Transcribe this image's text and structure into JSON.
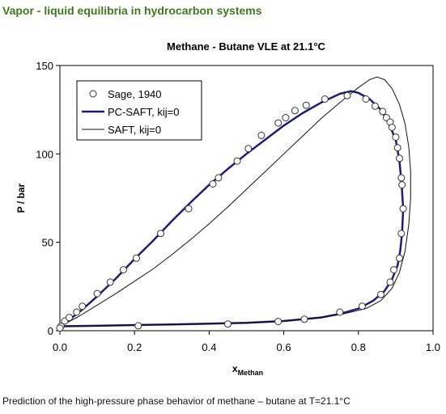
{
  "header": {
    "title": "Vapor - liquid equilibria in hydrocarbon systems"
  },
  "caption": "Prediction of the high-pressure phase behavior of methane – butane at T=21.1°C",
  "chart_data": {
    "type": "scatter",
    "title": "Methane - Butane VLE at 21.1°C",
    "xlabel": "x",
    "xlabel_sub": "Methan",
    "ylabel": "P / bar",
    "xlim": [
      0,
      1
    ],
    "ylim": [
      0,
      150
    ],
    "x_ticks": [
      0,
      0.2,
      0.4,
      0.6,
      0.8,
      1.0
    ],
    "x_tick_labels": [
      "0.0",
      "0.2",
      "0.4",
      "0.6",
      "0.8",
      "1.0"
    ],
    "y_ticks": [
      0,
      50,
      100,
      150
    ],
    "y_tick_labels": [
      "0",
      "50",
      "100",
      "150"
    ],
    "grid": false,
    "legend_position": "top-left",
    "colors": {
      "pc_saft": "#1c1c7a",
      "saft": "#111111",
      "marker": "#333333",
      "header": "#3d7a1c"
    },
    "series": [
      {
        "name": "Sage, 1940",
        "style": "marker",
        "points": [
          [
            0.003,
            2.5
          ],
          [
            0.013,
            5.5
          ],
          [
            0.025,
            7.5
          ],
          [
            0.045,
            10.5
          ],
          [
            0.06,
            13.8
          ],
          [
            0.1,
            21
          ],
          [
            0.135,
            27.5
          ],
          [
            0.17,
            34.5
          ],
          [
            0.205,
            41
          ],
          [
            0.27,
            55
          ],
          [
            0.345,
            69
          ],
          [
            0.41,
            83
          ],
          [
            0.425,
            86.5
          ],
          [
            0.475,
            96
          ],
          [
            0.505,
            103
          ],
          [
            0.54,
            110.5
          ],
          [
            0.585,
            117.5
          ],
          [
            0.605,
            120.5
          ],
          [
            0.63,
            124.5
          ],
          [
            0.66,
            127.5
          ],
          [
            0.71,
            131
          ],
          [
            0.77,
            133
          ],
          [
            0.82,
            131
          ],
          [
            0.845,
            127
          ],
          [
            0.865,
            124
          ],
          [
            0.875,
            120.5
          ],
          [
            0.885,
            118
          ],
          [
            0.89,
            115
          ],
          [
            0.9,
            109.5
          ],
          [
            0.905,
            103.5
          ],
          [
            0.91,
            97.5
          ],
          [
            0.915,
            86.5
          ],
          [
            0.917,
            82.5
          ],
          [
            0.92,
            69
          ],
          [
            0.915,
            55
          ],
          [
            0.91,
            41
          ],
          [
            0.895,
            34.5
          ],
          [
            0.885,
            27.5
          ],
          [
            0.86,
            20.5
          ],
          [
            0.81,
            13.8
          ],
          [
            0.75,
            10.5
          ],
          [
            0.655,
            6.5
          ],
          [
            0.585,
            5.2
          ],
          [
            0.45,
            3.8
          ],
          [
            0.21,
            2.8
          ],
          [
            0.0,
            1.5
          ]
        ]
      },
      {
        "name": "PC-SAFT, kij=0",
        "style": "thick-line",
        "points": [
          [
            0.0,
            2.5
          ],
          [
            0.03,
            7
          ],
          [
            0.06,
            12
          ],
          [
            0.1,
            19.5
          ],
          [
            0.15,
            29.5
          ],
          [
            0.2,
            40.5
          ],
          [
            0.25,
            51
          ],
          [
            0.3,
            62
          ],
          [
            0.35,
            72.5
          ],
          [
            0.4,
            82.5
          ],
          [
            0.45,
            91.5
          ],
          [
            0.5,
            100
          ],
          [
            0.55,
            108
          ],
          [
            0.6,
            116
          ],
          [
            0.65,
            123
          ],
          [
            0.7,
            129
          ],
          [
            0.75,
            134
          ],
          [
            0.78,
            135.5
          ],
          [
            0.8,
            134.5
          ],
          [
            0.83,
            131
          ],
          [
            0.86,
            125
          ],
          [
            0.88,
            118
          ],
          [
            0.9,
            108
          ],
          [
            0.91,
            96
          ],
          [
            0.916,
            82
          ],
          [
            0.92,
            69
          ],
          [
            0.917,
            55
          ],
          [
            0.912,
            45
          ],
          [
            0.905,
            37
          ],
          [
            0.89,
            29
          ],
          [
            0.87,
            22.5
          ],
          [
            0.84,
            17
          ],
          [
            0.8,
            12.5
          ],
          [
            0.75,
            9.5
          ],
          [
            0.7,
            7.5
          ],
          [
            0.6,
            5.5
          ],
          [
            0.5,
            4.5
          ],
          [
            0.4,
            4
          ],
          [
            0.3,
            3.5
          ],
          [
            0.2,
            3.2
          ],
          [
            0.1,
            2.8
          ],
          [
            0.0,
            2.5
          ]
        ]
      },
      {
        "name": "SAFT, kij=0",
        "style": "thin-line",
        "points": [
          [
            0.0,
            2.5
          ],
          [
            0.05,
            8
          ],
          [
            0.1,
            14.5
          ],
          [
            0.15,
            21
          ],
          [
            0.2,
            28
          ],
          [
            0.25,
            35
          ],
          [
            0.3,
            43
          ],
          [
            0.35,
            51.5
          ],
          [
            0.4,
            60.5
          ],
          [
            0.45,
            70
          ],
          [
            0.5,
            80
          ],
          [
            0.55,
            90
          ],
          [
            0.6,
            100
          ],
          [
            0.65,
            110
          ],
          [
            0.7,
            120
          ],
          [
            0.75,
            129
          ],
          [
            0.8,
            137.5
          ],
          [
            0.83,
            142
          ],
          [
            0.85,
            143.5
          ],
          [
            0.87,
            142
          ],
          [
            0.89,
            137
          ],
          [
            0.91,
            128
          ],
          [
            0.925,
            117
          ],
          [
            0.935,
            104
          ],
          [
            0.94,
            90
          ],
          [
            0.94,
            75
          ],
          [
            0.935,
            60
          ],
          [
            0.925,
            45
          ],
          [
            0.91,
            33
          ],
          [
            0.89,
            24
          ],
          [
            0.86,
            17
          ],
          [
            0.82,
            12.5
          ],
          [
            0.76,
            9.5
          ],
          [
            0.7,
            7.5
          ],
          [
            0.6,
            5.5
          ],
          [
            0.5,
            4.5
          ],
          [
            0.4,
            4
          ],
          [
            0.3,
            3.5
          ],
          [
            0.2,
            3.2
          ],
          [
            0.1,
            2.8
          ],
          [
            0.0,
            2.5
          ]
        ]
      }
    ]
  }
}
